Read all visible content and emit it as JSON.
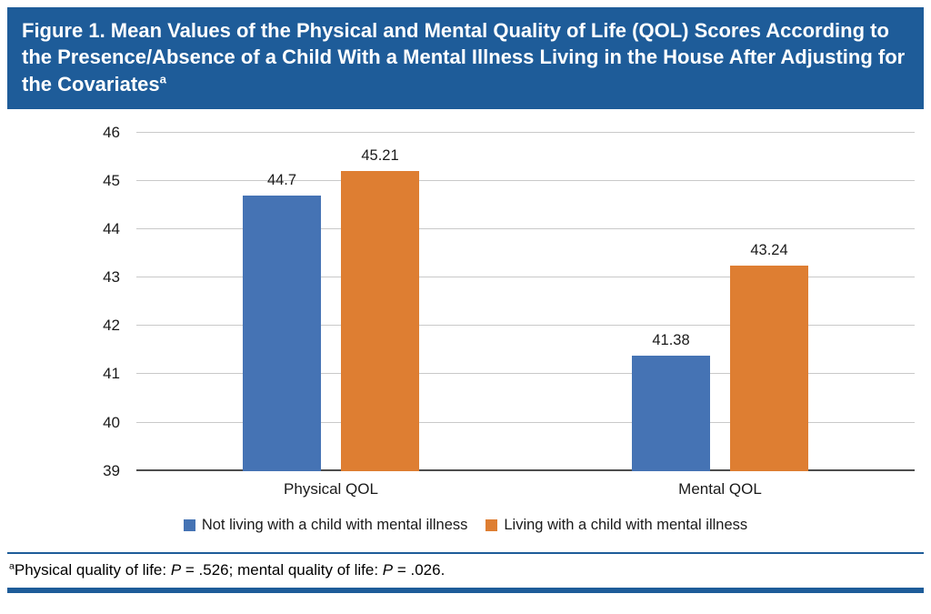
{
  "figure_title": {
    "text": "Figure 1. Mean Values of the Physical and Mental Quality of Life (QOL) Scores According to the Presence/Absence of a Child With a Mental Illness Living in the House After Adjusting for the Covariates",
    "superscript": "a"
  },
  "chart_data": {
    "type": "bar",
    "title": "Figure 1. Mean Values of the Physical and Mental Quality of Life (QOL) Scores According to the Presence/Absence of a Child With a Mental Illness Living in the House After Adjusting for the Covariates",
    "categories": [
      "Physical QOL",
      "Mental QOL"
    ],
    "series": [
      {
        "name": "Not living with a child with mental illness",
        "color": "#4573B4",
        "values": [
          44.7,
          41.38
        ],
        "value_labels": [
          "44.7",
          "41.38"
        ]
      },
      {
        "name": "Living with a child with mental illness",
        "color": "#DE7E32",
        "values": [
          45.21,
          43.24
        ],
        "value_labels": [
          "45.21",
          "43.24"
        ]
      }
    ],
    "xlabel": "",
    "ylabel": "",
    "ylim": [
      39,
      46
    ],
    "yticks": [
      39,
      40,
      41,
      42,
      43,
      44,
      45,
      46
    ],
    "grid": true,
    "legend_position": "bottom"
  },
  "footnote": {
    "superscript": "a",
    "segment1": "Physical quality of life: ",
    "p_label1": "P",
    "segment2": " = .526; mental quality of life: ",
    "p_label2": "P",
    "segment3": " = .026."
  },
  "colors": {
    "header_background": "#1E5C99",
    "rule": "#1E5C99",
    "gridline": "#c9c9c9",
    "axis_line": "#4d4d4d",
    "series_blue": "#4573B4",
    "series_orange": "#DE7E32"
  }
}
